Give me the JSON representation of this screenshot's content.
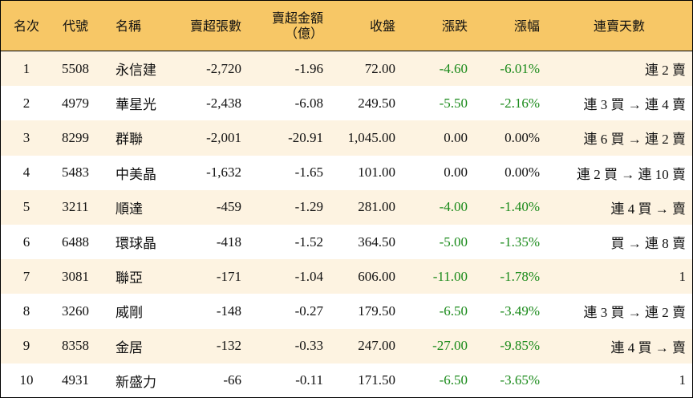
{
  "table": {
    "header": [
      "名次",
      "代號",
      "名稱",
      "賣超張數",
      "賣超金額\n（億）",
      "收盤",
      "漲跌",
      "漲幅",
      "連賣天數"
    ],
    "rows": [
      [
        "1",
        "5508",
        "永信建",
        "-2,720",
        "-1.96",
        "72.00",
        "-4.60",
        "-6.01%",
        "連 2 賣"
      ],
      [
        "2",
        "4979",
        "華星光",
        "-2,438",
        "-6.08",
        "249.50",
        "-5.50",
        "-2.16%",
        "連 3 買 → 連 4 賣"
      ],
      [
        "3",
        "8299",
        "群聯",
        "-2,001",
        "-20.91",
        "1,045.00",
        "0.00",
        "0.00%",
        "連 6 買 → 連 2 賣"
      ],
      [
        "4",
        "5483",
        "中美晶",
        "-1,632",
        "-1.65",
        "101.00",
        "0.00",
        "0.00%",
        "連 2 買 → 連 10 賣"
      ],
      [
        "5",
        "3211",
        "順達",
        "-459",
        "-1.29",
        "281.00",
        "-4.00",
        "-1.40%",
        "連 4 買 → 賣"
      ],
      [
        "6",
        "6488",
        "環球晶",
        "-418",
        "-1.52",
        "364.50",
        "-5.00",
        "-1.35%",
        "買 → 連 8 賣"
      ],
      [
        "7",
        "3081",
        "聯亞",
        "-171",
        "-1.04",
        "606.00",
        "-11.00",
        "-1.78%",
        "1"
      ],
      [
        "8",
        "3260",
        "威剛",
        "-148",
        "-0.27",
        "179.50",
        "-6.50",
        "-3.49%",
        "連 3 買 → 連 2 賣"
      ],
      [
        "9",
        "8358",
        "金居",
        "-132",
        "-0.33",
        "247.00",
        "-27.00",
        "-9.85%",
        "連 4 買 → 賣"
      ],
      [
        "10",
        "4931",
        "新盛力",
        "-66",
        "-0.11",
        "171.50",
        "-6.50",
        "-3.65%",
        "1"
      ]
    ]
  }
}
